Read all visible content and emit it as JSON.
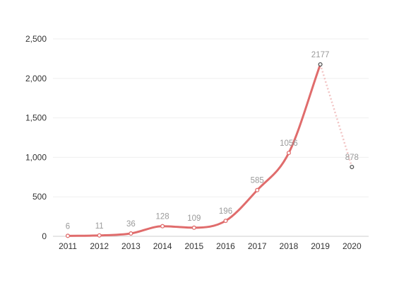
{
  "chart_data": {
    "type": "line",
    "title": "",
    "xlabel": "",
    "ylabel": "",
    "categories": [
      "2011",
      "2012",
      "2013",
      "2014",
      "2015",
      "2016",
      "2017",
      "2018",
      "2019",
      "2020"
    ],
    "values": [
      6,
      11,
      36,
      128,
      109,
      196,
      585,
      1056,
      2177,
      878
    ],
    "data_labels": [
      "6",
      "11",
      "36",
      "128",
      "109",
      "196",
      "585",
      "1056",
      "2177",
      "878"
    ],
    "y_ticks": [
      0,
      500,
      1000,
      1500,
      2000,
      2500
    ],
    "y_tick_labels": [
      "0",
      "500",
      "1,000",
      "1,500",
      "2,000",
      "2,500"
    ],
    "ylim": [
      0,
      2500
    ],
    "grid": true,
    "legend": "none",
    "solid_until_index": 8,
    "last_segment_style": "dotted",
    "colors": {
      "line": "#e06c6c",
      "dotted": "#f2c4c4",
      "marker_stroke": "#e06c6c",
      "last_marker_stroke": "#555555"
    }
  }
}
